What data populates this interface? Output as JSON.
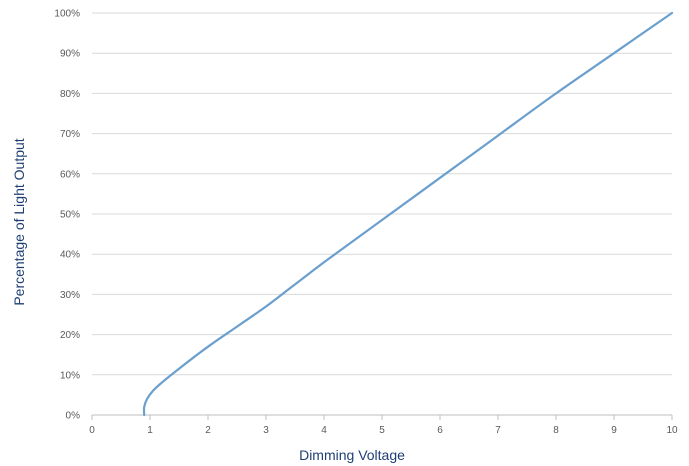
{
  "chart_data": {
    "type": "line",
    "title": "",
    "xlabel": "Dimming Voltage",
    "ylabel": "Percentage of Light Output",
    "xlim": [
      0,
      10
    ],
    "ylim": [
      0,
      100
    ],
    "x_ticks": [
      0,
      1,
      2,
      3,
      4,
      5,
      6,
      7,
      8,
      9,
      10
    ],
    "x_tick_labels": [
      "0",
      "1",
      "2",
      "3",
      "4",
      "5",
      "6",
      "7",
      "8",
      "9",
      "10"
    ],
    "y_ticks": [
      0,
      10,
      20,
      30,
      40,
      50,
      60,
      70,
      80,
      90,
      100
    ],
    "y_tick_labels": [
      "0%",
      "10%",
      "20%",
      "30%",
      "40%",
      "50%",
      "60%",
      "70%",
      "80%",
      "90%",
      "100%"
    ],
    "grid": true,
    "legend": "none",
    "series": [
      {
        "color": "#6a9fce",
        "points": [
          [
            0.9,
            0
          ],
          [
            0.9,
            2
          ],
          [
            0.95,
            4
          ],
          [
            1.05,
            6
          ],
          [
            1.2,
            8
          ],
          [
            1.5,
            11.5
          ],
          [
            2.0,
            17
          ],
          [
            2.5,
            22
          ],
          [
            3.0,
            27
          ],
          [
            3.5,
            32.5
          ],
          [
            4.0,
            38
          ],
          [
            5.0,
            48.5
          ],
          [
            6.0,
            59
          ],
          [
            7.0,
            69.5
          ],
          [
            8.0,
            80
          ],
          [
            9.0,
            90
          ],
          [
            10.0,
            100
          ]
        ]
      }
    ]
  }
}
